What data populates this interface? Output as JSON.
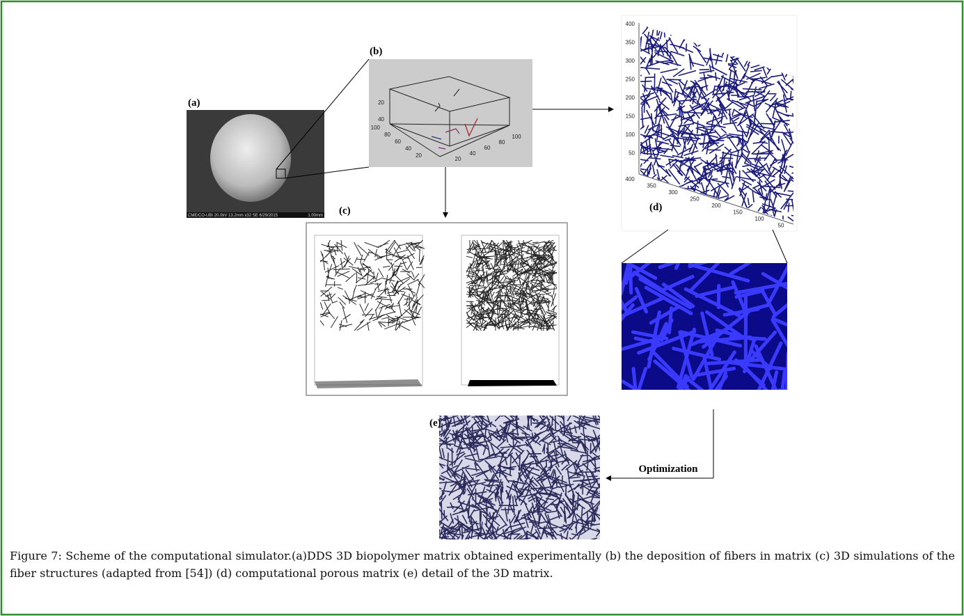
{
  "panels": {
    "a": {
      "label": "(a)",
      "info_text": "CME/CO-UBI 20.0kV 13.2mm x32 SE 6/29/2015",
      "scale_text": "1.00mm"
    },
    "b": {
      "label": "(b)",
      "z_ticks": [
        20,
        40
      ],
      "y_ticks": [
        100,
        80,
        60,
        40,
        20
      ],
      "x_ticks": [
        20,
        40,
        60,
        80,
        100
      ]
    },
    "c": {
      "label": "(c)"
    },
    "d": {
      "label": "(d)",
      "z_ticks": [
        400,
        350,
        300,
        250,
        200,
        150,
        100,
        50
      ],
      "x_ticks": [
        400,
        350,
        300,
        250,
        200,
        150,
        100,
        50
      ]
    },
    "e": {
      "label": "(e)"
    }
  },
  "flow_label": "Optimization",
  "caption": "Figure 7: Scheme of the computational simulator.(a)DDS 3D biopolymer matrix obtained experimentally (b) the deposition of fibers in matrix (c) 3D simulations of the fiber structures (adapted from [54]) (d) computational porous matrix (e) detail of the 3D matrix."
}
